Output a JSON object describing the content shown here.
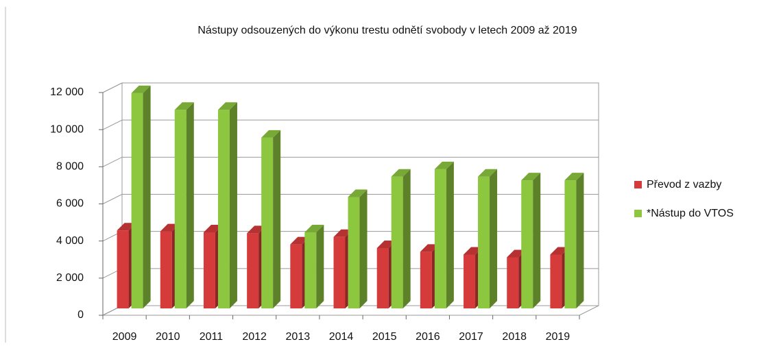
{
  "chart_data": {
    "type": "bar3d",
    "title": "Nástupy odsouzených do výkonu trestu odnětí svobody v letech 2009 až 2019",
    "categories": [
      "2009",
      "2010",
      "2011",
      "2012",
      "2013",
      "2014",
      "2015",
      "2016",
      "2017",
      "2018",
      "2019"
    ],
    "series": [
      {
        "name": "Převod z vazby",
        "color": "#d63b3b",
        "values": [
          4200,
          4150,
          4100,
          4050,
          3450,
          3850,
          3250,
          3050,
          2900,
          2750,
          2900
        ]
      },
      {
        "name": "*Nástup do VTOS",
        "color": "#8dc63f",
        "values": [
          11600,
          10700,
          10700,
          9200,
          4100,
          6000,
          7100,
          7500,
          7100,
          6900,
          6900
        ]
      }
    ],
    "ylim": [
      0,
      12000
    ],
    "yticks": [
      0,
      {
        "value": 2000,
        "label": "2 000"
      },
      {
        "value": 4000,
        "label": "4 000"
      },
      {
        "value": 6000,
        "label": "6 000"
      },
      {
        "value": 8000,
        "label": "8 000"
      },
      {
        "value": 10000,
        "label": "10 000"
      },
      {
        "value": 12000,
        "label": "12 000"
      }
    ],
    "grid": true,
    "legend": "right"
  }
}
